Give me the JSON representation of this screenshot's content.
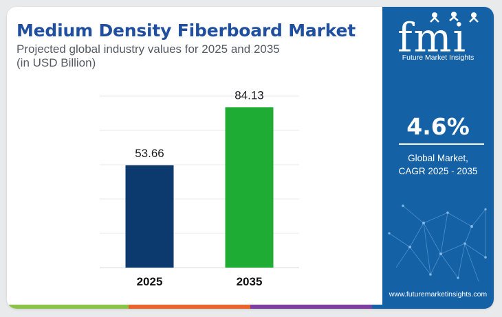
{
  "header": {
    "title": "Medium Density Fiberboard Market",
    "subtitle_line1": "Projected global industry values for 2025 and 2035",
    "subtitle_line2": "(in USD Billion)"
  },
  "chart_data": {
    "type": "bar",
    "categories": [
      "2025",
      "2035"
    ],
    "values": [
      53.66,
      84.13
    ],
    "value_labels": [
      "53.66",
      "84.13"
    ],
    "colors": [
      "#0c3a6e",
      "#1fac35"
    ],
    "ylim": [
      0,
      90
    ],
    "grid": true,
    "xlabel": "",
    "ylabel": ""
  },
  "sidebar": {
    "logo_text": "fmi",
    "logo_tagline": "Future Market Insights",
    "cagr_value": "4.6%",
    "cagr_label_line1": "Global Market,",
    "cagr_label_line2": "CAGR 2025 - 2035",
    "website": "www.futuremarketinsights.com",
    "background": "#1561a6"
  },
  "bottom_stripe_colors": [
    "#8bc34a",
    "#e8642c",
    "#7b3fa0",
    "#1561a6"
  ]
}
